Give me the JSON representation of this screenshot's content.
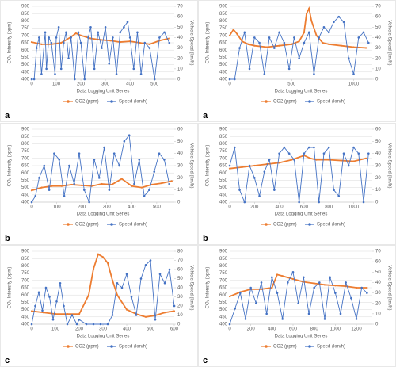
{
  "chart_data": [
    {
      "type": "line",
      "panel_label": "a",
      "x_label": "Data Logging Unit Series",
      "y_label": "CO₂ Intensity (ppm)",
      "y2_label": "Vehicle Speed (km/h)",
      "xlim": [
        0,
        580
      ],
      "xticks": [
        0,
        100,
        200,
        300,
        400,
        500
      ],
      "ylim": [
        400,
        900
      ],
      "yticks": [
        400,
        450,
        500,
        550,
        600,
        650,
        700,
        750,
        800,
        850,
        900
      ],
      "y2lim": [
        0,
        70
      ],
      "y2ticks": [
        0,
        10,
        20,
        30,
        40,
        50,
        60,
        70
      ],
      "grid": true,
      "series": [
        {
          "name": "CO2 (ppm)",
          "color": "#ed7d31",
          "x": [
            0,
            40,
            80,
            120,
            160,
            180,
            200,
            240,
            280,
            320,
            360,
            400,
            440,
            480,
            520,
            560
          ],
          "values": [
            655,
            640,
            640,
            650,
            690,
            715,
            700,
            680,
            670,
            665,
            655,
            660,
            650,
            640,
            665,
            680
          ]
        },
        {
          "name": "Speed (km/h)",
          "color": "#4472c4",
          "axis": "y2",
          "x": [
            0,
            10,
            20,
            30,
            40,
            55,
            60,
            70,
            80,
            95,
            100,
            110,
            120,
            130,
            140,
            150,
            160,
            175,
            190,
            200,
            215,
            230,
            240,
            255,
            270,
            285,
            300,
            315,
            330,
            345,
            360,
            375,
            390,
            400,
            415,
            430,
            445,
            460,
            480,
            500,
            520,
            540,
            560
          ],
          "values": [
            0,
            0,
            30,
            40,
            5,
            45,
            10,
            40,
            35,
            5,
            40,
            50,
            10,
            35,
            45,
            20,
            40,
            0,
            45,
            35,
            0,
            40,
            50,
            10,
            45,
            30,
            50,
            15,
            40,
            5,
            45,
            50,
            55,
            40,
            10,
            45,
            5,
            35,
            30,
            0,
            40,
            45,
            35
          ]
        }
      ]
    },
    {
      "type": "line",
      "panel_label": "a",
      "x_label": "Data Logging Unit Series",
      "y_label": "CO₂ Intensity (ppm)",
      "y2_label": "Vehicle Speed (km/h)",
      "xlim": [
        0,
        1150
      ],
      "xticks": [
        0,
        500,
        1000
      ],
      "ylim": [
        400,
        900
      ],
      "yticks": [
        400,
        450,
        500,
        550,
        600,
        650,
        700,
        750,
        800,
        850,
        900
      ],
      "y2lim": [
        0,
        70
      ],
      "y2ticks": [
        0,
        10,
        20,
        30,
        40,
        50,
        60,
        70
      ],
      "grid": true,
      "series": [
        {
          "name": "CO2 (ppm)",
          "color": "#ed7d31",
          "x": [
            0,
            30,
            60,
            100,
            150,
            200,
            300,
            400,
            500,
            560,
            600,
            620,
            640,
            660,
            700,
            750,
            800,
            900,
            1000,
            1100
          ],
          "values": [
            700,
            740,
            710,
            660,
            640,
            630,
            620,
            630,
            640,
            660,
            720,
            850,
            885,
            800,
            700,
            650,
            640,
            630,
            620,
            615
          ]
        },
        {
          "name": "Speed (km/h)",
          "color": "#4472c4",
          "axis": "y2",
          "x": [
            0,
            40,
            80,
            120,
            160,
            200,
            240,
            280,
            320,
            360,
            400,
            440,
            480,
            520,
            560,
            600,
            640,
            680,
            720,
            760,
            800,
            840,
            880,
            920,
            960,
            1000,
            1040,
            1080,
            1120
          ],
          "values": [
            0,
            0,
            30,
            45,
            10,
            40,
            35,
            5,
            40,
            30,
            45,
            35,
            10,
            40,
            20,
            35,
            45,
            5,
            40,
            50,
            45,
            55,
            60,
            55,
            20,
            5,
            40,
            45,
            35
          ]
        }
      ]
    },
    {
      "type": "line",
      "panel_label": "b",
      "x_label": "Data Logging Unit Series",
      "y_label": "CO₂ Intensity (ppm)",
      "y2_label": "Vehicle Speed (km/h)",
      "xlim": [
        0,
        570
      ],
      "xticks": [
        0,
        100,
        200,
        300,
        400,
        500
      ],
      "ylim": [
        400,
        900
      ],
      "yticks": [
        400,
        450,
        500,
        550,
        600,
        650,
        700,
        750,
        800,
        850,
        900
      ],
      "y2lim": [
        0,
        60
      ],
      "y2ticks": [
        0,
        10,
        20,
        30,
        40,
        50,
        60
      ],
      "grid": true,
      "series": [
        {
          "name": "CO2 (ppm)",
          "color": "#ed7d31",
          "x": [
            0,
            40,
            80,
            120,
            160,
            200,
            240,
            280,
            320,
            360,
            400,
            440,
            480,
            520,
            560
          ],
          "values": [
            480,
            500,
            510,
            510,
            520,
            515,
            510,
            525,
            520,
            560,
            510,
            500,
            520,
            530,
            545
          ]
        },
        {
          "name": "Speed (km/h)",
          "color": "#4472c4",
          "axis": "y2",
          "x": [
            0,
            15,
            30,
            50,
            70,
            90,
            110,
            130,
            150,
            170,
            190,
            210,
            230,
            250,
            270,
            290,
            310,
            330,
            350,
            370,
            390,
            410,
            430,
            450,
            470,
            490,
            510,
            530,
            550
          ],
          "values": [
            0,
            5,
            20,
            30,
            10,
            40,
            35,
            5,
            30,
            15,
            40,
            10,
            0,
            35,
            20,
            45,
            10,
            40,
            30,
            50,
            55,
            15,
            35,
            5,
            10,
            25,
            40,
            35,
            15
          ]
        }
      ]
    },
    {
      "type": "line",
      "panel_label": "b",
      "x_label": "Data Logging Unit Series",
      "y_label": "CO₂ Intensity (ppm)",
      "y2_label": "Vehicle Speed (km/h)",
      "xlim": [
        0,
        1150
      ],
      "xticks": [
        0,
        200,
        400,
        600,
        800,
        1000
      ],
      "ylim": [
        400,
        900
      ],
      "yticks": [
        400,
        450,
        500,
        550,
        600,
        650,
        700,
        750,
        800,
        850,
        900
      ],
      "y2lim": [
        0,
        60
      ],
      "y2ticks": [
        0,
        10,
        20,
        30,
        40,
        50,
        60
      ],
      "grid": true,
      "series": [
        {
          "name": "CO2 (ppm)",
          "color": "#ed7d31",
          "x": [
            0,
            100,
            200,
            300,
            400,
            500,
            600,
            650,
            700,
            800,
            900,
            1000,
            1100
          ],
          "values": [
            630,
            640,
            650,
            660,
            670,
            690,
            720,
            700,
            690,
            690,
            685,
            680,
            700
          ]
        },
        {
          "name": "Speed (km/h)",
          "color": "#4472c4",
          "axis": "y2",
          "x": [
            0,
            40,
            80,
            120,
            160,
            200,
            240,
            280,
            320,
            360,
            400,
            440,
            480,
            520,
            560,
            600,
            640,
            680,
            720,
            760,
            800,
            840,
            880,
            920,
            960,
            1000,
            1040,
            1080,
            1120
          ],
          "values": [
            30,
            45,
            10,
            0,
            30,
            20,
            5,
            25,
            35,
            10,
            40,
            45,
            40,
            35,
            0,
            40,
            45,
            45,
            0,
            40,
            45,
            10,
            5,
            40,
            30,
            45,
            40,
            0,
            40
          ]
        }
      ]
    },
    {
      "type": "line",
      "panel_label": "c",
      "x_label": "Data Logging Unit Series",
      "y_label": "CO₂ Intensity (ppm)",
      "y2_label": "Vehicle Speed (km/h)",
      "xlim": [
        0,
        600
      ],
      "xticks": [
        0,
        100,
        200,
        300,
        400,
        500,
        600
      ],
      "ylim": [
        400,
        900
      ],
      "yticks": [
        400,
        450,
        500,
        550,
        600,
        650,
        700,
        750,
        800,
        850,
        900
      ],
      "y2lim": [
        0,
        80
      ],
      "y2ticks": [
        0,
        10,
        20,
        30,
        40,
        50,
        60,
        70,
        80
      ],
      "grid": true,
      "series": [
        {
          "name": "CO2 (ppm)",
          "color": "#ed7d31",
          "x": [
            0,
            50,
            100,
            150,
            200,
            240,
            260,
            280,
            300,
            320,
            340,
            360,
            400,
            440,
            480,
            520,
            560,
            600
          ],
          "values": [
            490,
            480,
            470,
            470,
            470,
            600,
            780,
            880,
            860,
            820,
            700,
            600,
            500,
            470,
            450,
            460,
            480,
            490
          ]
        },
        {
          "name": "Speed (km/h)",
          "color": "#4472c4",
          "axis": "y2",
          "x": [
            0,
            15,
            30,
            45,
            60,
            75,
            90,
            105,
            120,
            135,
            150,
            170,
            190,
            200,
            230,
            260,
            290,
            320,
            340,
            360,
            380,
            400,
            420,
            440,
            460,
            480,
            500,
            520,
            540,
            560,
            580,
            600
          ],
          "values": [
            0,
            20,
            35,
            15,
            40,
            30,
            5,
            25,
            45,
            20,
            0,
            10,
            0,
            5,
            0,
            0,
            0,
            0,
            10,
            45,
            40,
            55,
            30,
            10,
            50,
            65,
            70,
            5,
            55,
            45,
            60,
            20
          ]
        }
      ]
    },
    {
      "type": "line",
      "panel_label": "c",
      "x_label": "Data Logging Unit Series",
      "y_label": "CO₂ Intensity (ppm)",
      "y2_label": "Vehicle Speed (km/h)",
      "xlim": [
        0,
        1350
      ],
      "xticks": [
        0,
        200,
        400,
        600,
        800,
        1000,
        1200
      ],
      "ylim": [
        400,
        900
      ],
      "yticks": [
        400,
        450,
        500,
        550,
        600,
        650,
        700,
        750,
        800,
        850,
        900
      ],
      "y2lim": [
        0,
        70
      ],
      "y2ticks": [
        0,
        10,
        20,
        30,
        40,
        50,
        60,
        70
      ],
      "grid": true,
      "series": [
        {
          "name": "CO2 (ppm)",
          "color": "#ed7d31",
          "x": [
            0,
            100,
            200,
            300,
            400,
            450,
            500,
            600,
            700,
            800,
            900,
            1000,
            1100,
            1200,
            1300
          ],
          "values": [
            590,
            620,
            640,
            640,
            650,
            740,
            730,
            710,
            690,
            680,
            670,
            665,
            660,
            650,
            650
          ]
        },
        {
          "name": "Speed (km/h)",
          "color": "#4472c4",
          "axis": "y2",
          "x": [
            0,
            50,
            100,
            150,
            200,
            250,
            300,
            350,
            400,
            450,
            500,
            550,
            600,
            650,
            700,
            750,
            800,
            850,
            900,
            950,
            1000,
            1050,
            1100,
            1150,
            1200,
            1250,
            1300
          ],
          "values": [
            0,
            15,
            30,
            5,
            35,
            20,
            40,
            10,
            45,
            30,
            5,
            40,
            50,
            20,
            45,
            10,
            35,
            40,
            5,
            45,
            30,
            10,
            40,
            25,
            5,
            35,
            30
          ]
        }
      ]
    }
  ]
}
